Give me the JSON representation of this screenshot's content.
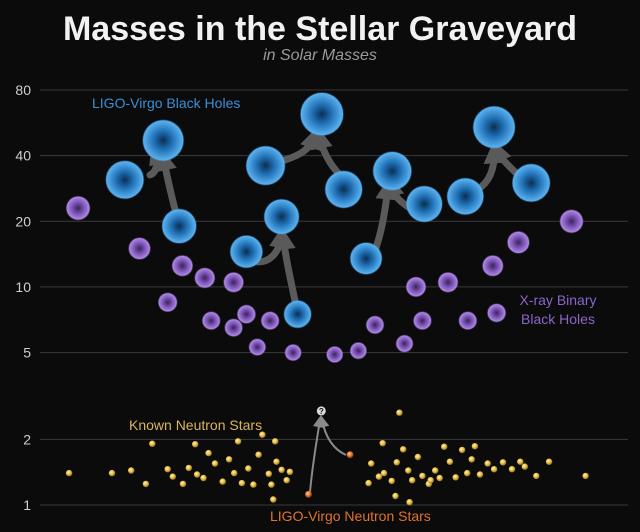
{
  "chart_data": {
    "type": "scatter",
    "title": "Masses in the Stellar Graveyard",
    "subtitle": "in Solar Masses",
    "xlabel": "",
    "ylabel": "",
    "y_scale": "log",
    "ylim": [
      0.9,
      100
    ],
    "yticks": [
      {
        "value": 1,
        "label": "1"
      },
      {
        "value": 2,
        "label": "2"
      },
      {
        "value": 5,
        "label": "5"
      },
      {
        "value": 10,
        "label": "10"
      },
      {
        "value": 20,
        "label": "20"
      },
      {
        "value": 40,
        "label": "40"
      },
      {
        "value": 80,
        "label": "80"
      }
    ],
    "grid": true,
    "colors": {
      "ligo_bh": "#2f8fd8",
      "xray_bh": "#9a6ad0",
      "known_ns": "#e8c046",
      "ligo_ns": "#e0742a",
      "arrow": "#5a5a5a",
      "label_ligo_bh": "#3a8fd6",
      "label_xray": "#8a66c8",
      "label_known_ns": "#d9b45a",
      "label_ligo_ns": "#e0742a"
    },
    "series": [
      {
        "name": "LIGO-Virgo Black Holes",
        "points": [
          {
            "x": 0.195,
            "y": 31
          },
          {
            "x": 0.255,
            "y": 47
          },
          {
            "x": 0.28,
            "y": 19
          },
          {
            "x": 0.385,
            "y": 14.5
          },
          {
            "x": 0.415,
            "y": 36
          },
          {
            "x": 0.44,
            "y": 21
          },
          {
            "x": 0.465,
            "y": 7.5
          },
          {
            "x": 0.503,
            "y": 62
          },
          {
            "x": 0.537,
            "y": 28
          },
          {
            "x": 0.572,
            "y": 13.5
          },
          {
            "x": 0.613,
            "y": 34
          },
          {
            "x": 0.663,
            "y": 24
          },
          {
            "x": 0.727,
            "y": 26
          },
          {
            "x": 0.772,
            "y": 54
          },
          {
            "x": 0.83,
            "y": 30
          }
        ]
      },
      {
        "name": "X-ray Binary Black Holes",
        "points": [
          {
            "x": 0.122,
            "y": 23
          },
          {
            "x": 0.218,
            "y": 15
          },
          {
            "x": 0.262,
            "y": 8.5
          },
          {
            "x": 0.285,
            "y": 12.5
          },
          {
            "x": 0.33,
            "y": 7
          },
          {
            "x": 0.32,
            "y": 11
          },
          {
            "x": 0.365,
            "y": 6.5
          },
          {
            "x": 0.365,
            "y": 10.5
          },
          {
            "x": 0.385,
            "y": 7.5
          },
          {
            "x": 0.402,
            "y": 5.3
          },
          {
            "x": 0.422,
            "y": 7
          },
          {
            "x": 0.458,
            "y": 5
          },
          {
            "x": 0.523,
            "y": 4.9
          },
          {
            "x": 0.56,
            "y": 5.1
          },
          {
            "x": 0.586,
            "y": 6.7
          },
          {
            "x": 0.632,
            "y": 5.5
          },
          {
            "x": 0.65,
            "y": 10
          },
          {
            "x": 0.66,
            "y": 7
          },
          {
            "x": 0.7,
            "y": 10.5
          },
          {
            "x": 0.731,
            "y": 7
          },
          {
            "x": 0.77,
            "y": 12.5
          },
          {
            "x": 0.776,
            "y": 7.6
          },
          {
            "x": 0.81,
            "y": 16
          },
          {
            "x": 0.893,
            "y": 20
          }
        ]
      },
      {
        "name": "Known Neutron Stars",
        "points": [
          {
            "x": 0.108,
            "y": 1.4
          },
          {
            "x": 0.175,
            "y": 1.4
          },
          {
            "x": 0.205,
            "y": 1.44
          },
          {
            "x": 0.228,
            "y": 1.25
          },
          {
            "x": 0.238,
            "y": 1.91
          },
          {
            "x": 0.262,
            "y": 1.46
          },
          {
            "x": 0.27,
            "y": 1.35
          },
          {
            "x": 0.286,
            "y": 1.25
          },
          {
            "x": 0.295,
            "y": 1.48
          },
          {
            "x": 0.305,
            "y": 1.9
          },
          {
            "x": 0.308,
            "y": 1.38
          },
          {
            "x": 0.318,
            "y": 1.33
          },
          {
            "x": 0.326,
            "y": 1.73
          },
          {
            "x": 0.336,
            "y": 1.55
          },
          {
            "x": 0.348,
            "y": 1.28
          },
          {
            "x": 0.358,
            "y": 1.62
          },
          {
            "x": 0.366,
            "y": 1.4
          },
          {
            "x": 0.372,
            "y": 1.96
          },
          {
            "x": 0.378,
            "y": 1.26
          },
          {
            "x": 0.388,
            "y": 1.47
          },
          {
            "x": 0.396,
            "y": 1.24
          },
          {
            "x": 0.404,
            "y": 1.7
          },
          {
            "x": 0.41,
            "y": 2.1
          },
          {
            "x": 0.42,
            "y": 1.39
          },
          {
            "x": 0.424,
            "y": 1.24
          },
          {
            "x": 0.432,
            "y": 1.58
          },
          {
            "x": 0.44,
            "y": 1.45
          },
          {
            "x": 0.448,
            "y": 1.3
          },
          {
            "x": 0.453,
            "y": 1.42
          },
          {
            "x": 0.427,
            "y": 1.06
          },
          {
            "x": 0.43,
            "y": 1.96
          },
          {
            "x": 0.6,
            "y": 1.4
          },
          {
            "x": 0.576,
            "y": 1.26
          },
          {
            "x": 0.58,
            "y": 1.55
          },
          {
            "x": 0.598,
            "y": 1.92
          },
          {
            "x": 0.592,
            "y": 1.35
          },
          {
            "x": 0.612,
            "y": 1.29
          },
          {
            "x": 0.62,
            "y": 1.57
          },
          {
            "x": 0.624,
            "y": 2.65
          },
          {
            "x": 0.63,
            "y": 1.8
          },
          {
            "x": 0.638,
            "y": 1.44
          },
          {
            "x": 0.644,
            "y": 1.3
          },
          {
            "x": 0.653,
            "y": 1.66
          },
          {
            "x": 0.66,
            "y": 1.36
          },
          {
            "x": 0.67,
            "y": 1.25
          },
          {
            "x": 0.68,
            "y": 1.44
          },
          {
            "x": 0.687,
            "y": 1.33
          },
          {
            "x": 0.694,
            "y": 1.85
          },
          {
            "x": 0.703,
            "y": 1.58
          },
          {
            "x": 0.712,
            "y": 1.34
          },
          {
            "x": 0.722,
            "y": 1.79
          },
          {
            "x": 0.73,
            "y": 1.4
          },
          {
            "x": 0.737,
            "y": 1.62
          },
          {
            "x": 0.742,
            "y": 1.86
          },
          {
            "x": 0.75,
            "y": 1.38
          },
          {
            "x": 0.762,
            "y": 1.55
          },
          {
            "x": 0.772,
            "y": 1.46
          },
          {
            "x": 0.786,
            "y": 1.57
          },
          {
            "x": 0.8,
            "y": 1.46
          },
          {
            "x": 0.813,
            "y": 1.58
          },
          {
            "x": 0.82,
            "y": 1.5
          },
          {
            "x": 0.838,
            "y": 1.36
          },
          {
            "x": 0.858,
            "y": 1.58
          },
          {
            "x": 0.915,
            "y": 1.36
          },
          {
            "x": 0.64,
            "y": 1.03
          },
          {
            "x": 0.618,
            "y": 1.1
          },
          {
            "x": 0.673,
            "y": 1.3
          }
        ]
      },
      {
        "name": "LIGO-Virgo Neutron Stars",
        "points": [
          {
            "x": 0.482,
            "y": 1.12
          },
          {
            "x": 0.547,
            "y": 1.7
          },
          {
            "x": 0.502,
            "y": 2.7
          }
        ]
      }
    ],
    "annotations": [
      {
        "text": "?",
        "x": 0.502,
        "y": 2.7
      }
    ]
  }
}
